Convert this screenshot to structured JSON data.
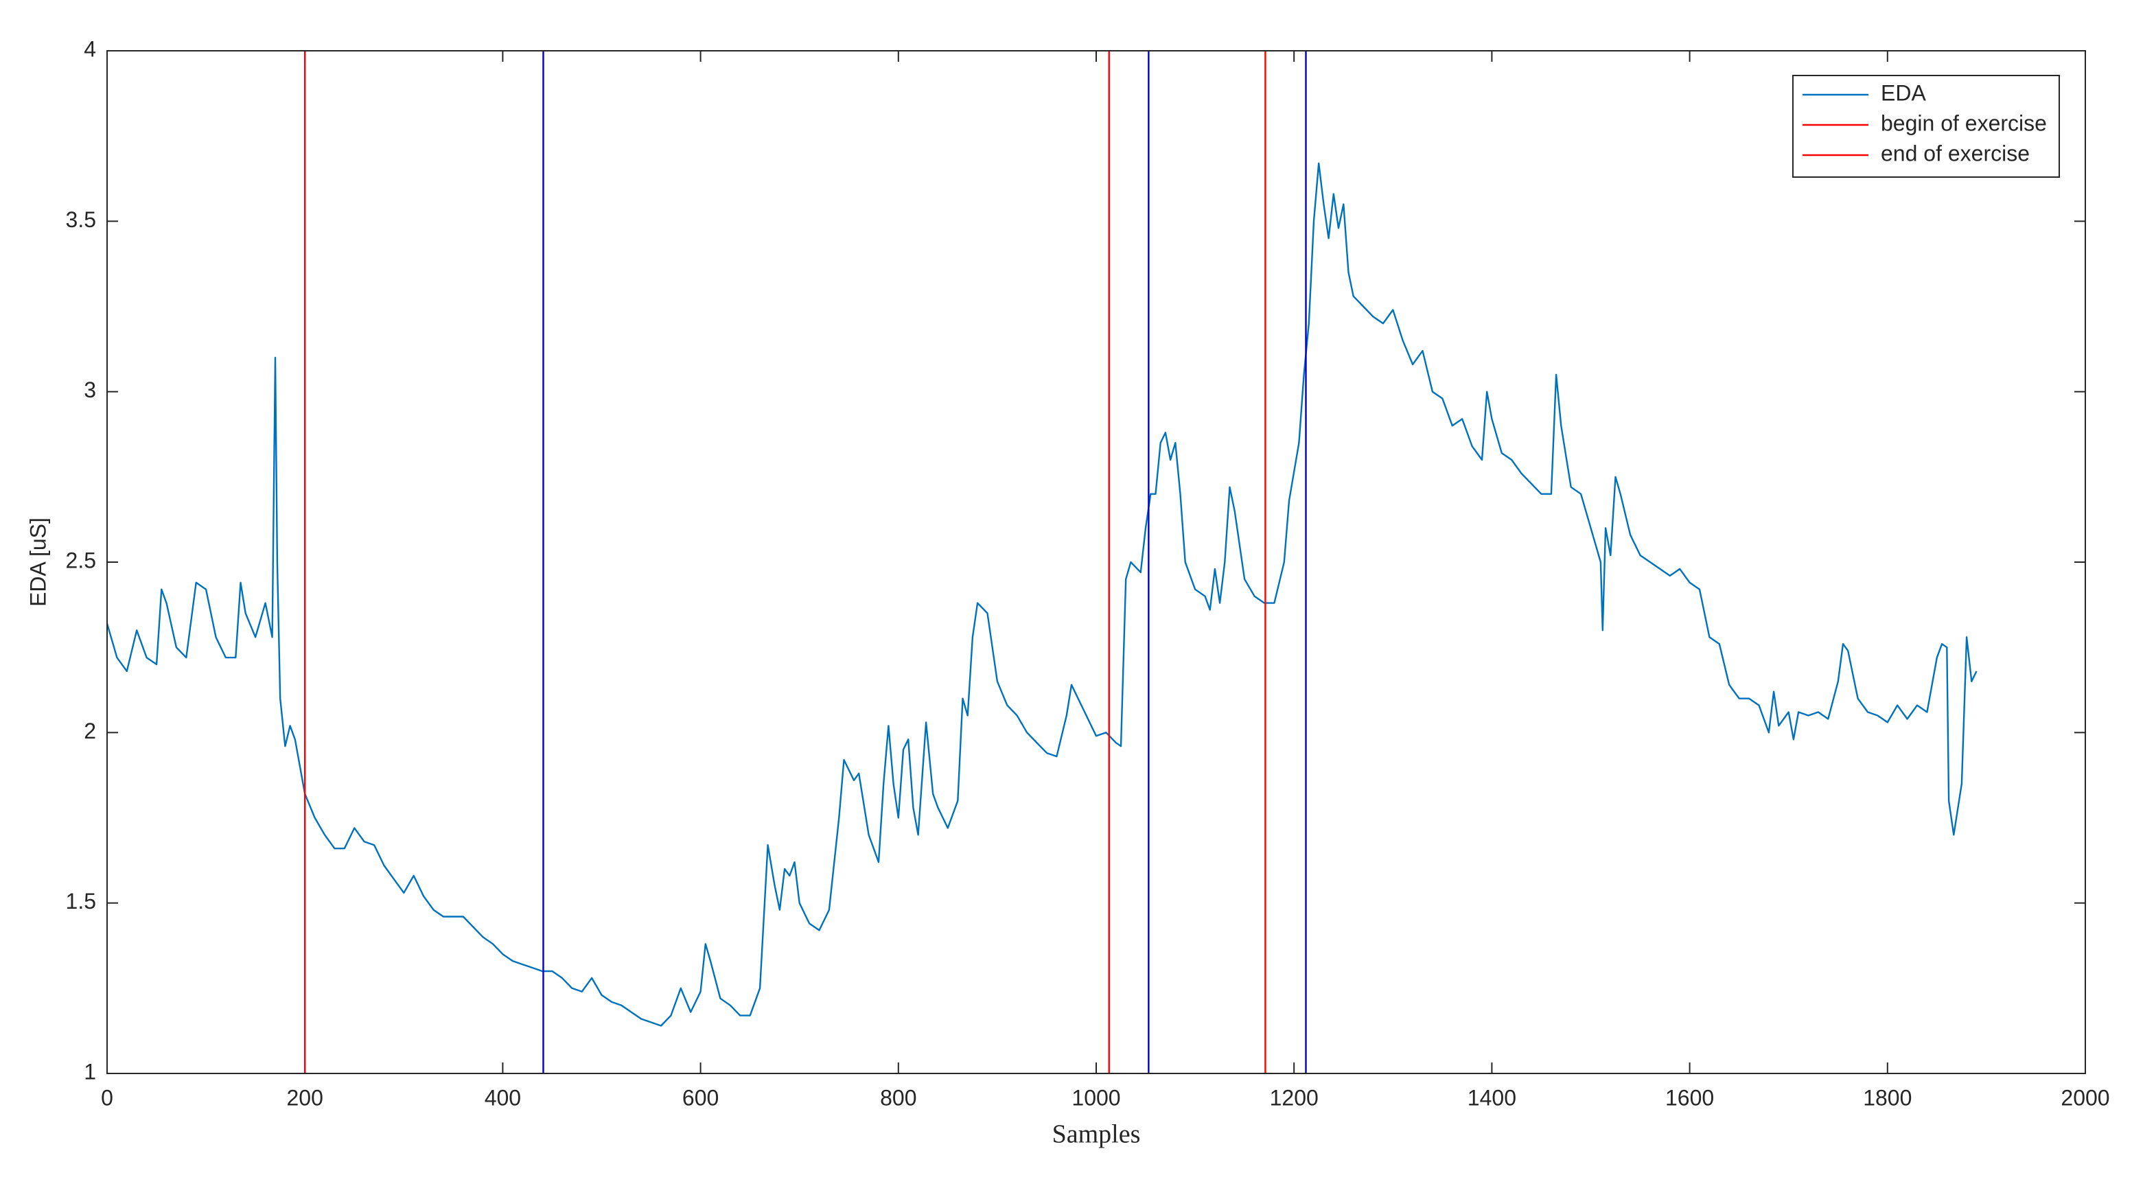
{
  "chart_data": {
    "type": "line",
    "xlabel": "Samples",
    "ylabel": "EDA [uS]",
    "xlim": [
      0,
      2000
    ],
    "xticks": [
      0,
      200,
      400,
      600,
      800,
      1000,
      1200,
      1400,
      1600,
      1800,
      2000
    ],
    "ylim": [
      1,
      4
    ],
    "yticks": [
      1,
      1.5,
      2,
      2.5,
      3,
      3.5,
      4
    ],
    "grid": false,
    "legend": "upper right",
    "x": [
      0,
      10,
      20,
      30,
      40,
      50,
      55,
      60,
      70,
      80,
      90,
      100,
      110,
      120,
      130,
      135,
      140,
      150,
      160,
      167,
      170,
      172,
      175,
      180,
      185,
      190,
      200,
      210,
      220,
      230,
      240,
      250,
      260,
      270,
      280,
      290,
      300,
      310,
      320,
      330,
      340,
      350,
      360,
      370,
      380,
      390,
      400,
      410,
      420,
      430,
      440,
      450,
      460,
      470,
      480,
      490,
      500,
      510,
      520,
      530,
      540,
      550,
      560,
      570,
      580,
      590,
      600,
      605,
      610,
      620,
      630,
      640,
      650,
      660,
      668,
      675,
      680,
      685,
      690,
      695,
      700,
      710,
      720,
      730,
      740,
      745,
      755,
      760,
      770,
      780,
      785,
      790,
      795,
      800,
      805,
      810,
      815,
      820,
      828,
      835,
      840,
      850,
      860,
      865,
      870,
      875,
      880,
      890,
      900,
      910,
      920,
      930,
      940,
      950,
      960,
      970,
      975,
      985,
      1000,
      1010,
      1020,
      1025,
      1030,
      1035,
      1045,
      1050,
      1055,
      1060,
      1065,
      1070,
      1075,
      1080,
      1085,
      1090,
      1100,
      1110,
      1115,
      1120,
      1125,
      1130,
      1135,
      1140,
      1150,
      1160,
      1170,
      1180,
      1190,
      1195,
      1205,
      1210,
      1215,
      1220,
      1225,
      1230,
      1235,
      1240,
      1245,
      1250,
      1255,
      1260,
      1270,
      1280,
      1290,
      1300,
      1310,
      1320,
      1330,
      1340,
      1350,
      1360,
      1370,
      1380,
      1390,
      1395,
      1400,
      1410,
      1420,
      1430,
      1440,
      1450,
      1460,
      1465,
      1470,
      1480,
      1490,
      1500,
      1510,
      1512,
      1515,
      1520,
      1525,
      1530,
      1540,
      1550,
      1560,
      1570,
      1580,
      1590,
      1600,
      1610,
      1620,
      1630,
      1640,
      1650,
      1660,
      1670,
      1680,
      1685,
      1690,
      1700,
      1705,
      1710,
      1720,
      1730,
      1740,
      1750,
      1755,
      1760,
      1770,
      1780,
      1790,
      1800,
      1810,
      1820,
      1830,
      1840,
      1850,
      1855,
      1860,
      1862,
      1867,
      1875,
      1880,
      1885,
      1890
    ],
    "series": [
      {
        "name": "EDA",
        "color": "#0072bd",
        "values": [
          2.32,
          2.22,
          2.18,
          2.3,
          2.22,
          2.2,
          2.42,
          2.38,
          2.25,
          2.22,
          2.44,
          2.42,
          2.28,
          2.22,
          2.22,
          2.44,
          2.35,
          2.28,
          2.38,
          2.28,
          3.1,
          2.5,
          2.1,
          1.96,
          2.02,
          1.98,
          1.82,
          1.75,
          1.7,
          1.66,
          1.66,
          1.72,
          1.68,
          1.67,
          1.61,
          1.57,
          1.53,
          1.58,
          1.52,
          1.48,
          1.46,
          1.46,
          1.46,
          1.43,
          1.4,
          1.38,
          1.35,
          1.33,
          1.32,
          1.31,
          1.3,
          1.3,
          1.28,
          1.25,
          1.24,
          1.28,
          1.23,
          1.21,
          1.2,
          1.18,
          1.16,
          1.15,
          1.14,
          1.17,
          1.25,
          1.18,
          1.24,
          1.38,
          1.33,
          1.22,
          1.2,
          1.17,
          1.17,
          1.25,
          1.67,
          1.55,
          1.48,
          1.6,
          1.58,
          1.62,
          1.5,
          1.44,
          1.42,
          1.48,
          1.75,
          1.92,
          1.86,
          1.88,
          1.7,
          1.62,
          1.85,
          2.02,
          1.85,
          1.75,
          1.95,
          1.98,
          1.78,
          1.7,
          2.03,
          1.82,
          1.78,
          1.72,
          1.8,
          2.1,
          2.05,
          2.28,
          2.38,
          2.35,
          2.15,
          2.08,
          2.05,
          2,
          1.97,
          1.94,
          1.93,
          2.05,
          2.14,
          2.08,
          1.99,
          2,
          1.97,
          1.96,
          2.45,
          2.5,
          2.47,
          2.6,
          2.7,
          2.7,
          2.85,
          2.88,
          2.8,
          2.85,
          2.7,
          2.5,
          2.42,
          2.4,
          2.36,
          2.48,
          2.38,
          2.5,
          2.72,
          2.65,
          2.45,
          2.4,
          2.38,
          2.38,
          2.5,
          2.68,
          2.85,
          3.05,
          3.2,
          3.5,
          3.67,
          3.55,
          3.45,
          3.58,
          3.48,
          3.55,
          3.35,
          3.28,
          3.25,
          3.22,
          3.2,
          3.24,
          3.15,
          3.08,
          3.12,
          3,
          2.98,
          2.9,
          2.92,
          2.84,
          2.8,
          3,
          2.92,
          2.82,
          2.8,
          2.76,
          2.73,
          2.7,
          2.7,
          3.05,
          2.9,
          2.72,
          2.7,
          2.6,
          2.5,
          2.3,
          2.6,
          2.52,
          2.75,
          2.7,
          2.58,
          2.52,
          2.5,
          2.48,
          2.46,
          2.48,
          2.44,
          2.42,
          2.28,
          2.26,
          2.14,
          2.1,
          2.1,
          2.08,
          2,
          2.12,
          2.02,
          2.06,
          1.98,
          2.06,
          2.05,
          2.06,
          2.04,
          2.15,
          2.26,
          2.24,
          2.1,
          2.06,
          2.05,
          2.03,
          2.08,
          2.04,
          2.08,
          2.06,
          2.22,
          2.26,
          2.25,
          1.8,
          1.7,
          1.85,
          2.28,
          2.15,
          2.18
        ]
      }
    ],
    "vlines": [
      {
        "name": "begin of exercise",
        "color": "#ff0000",
        "legend_color": "#ff0000",
        "x": [
          200,
          1013,
          1171
        ]
      },
      {
        "name": "end of exercise",
        "color": "#0000cc",
        "legend_color": "#ff0000",
        "x": [
          441,
          1053,
          1212
        ]
      }
    ]
  }
}
